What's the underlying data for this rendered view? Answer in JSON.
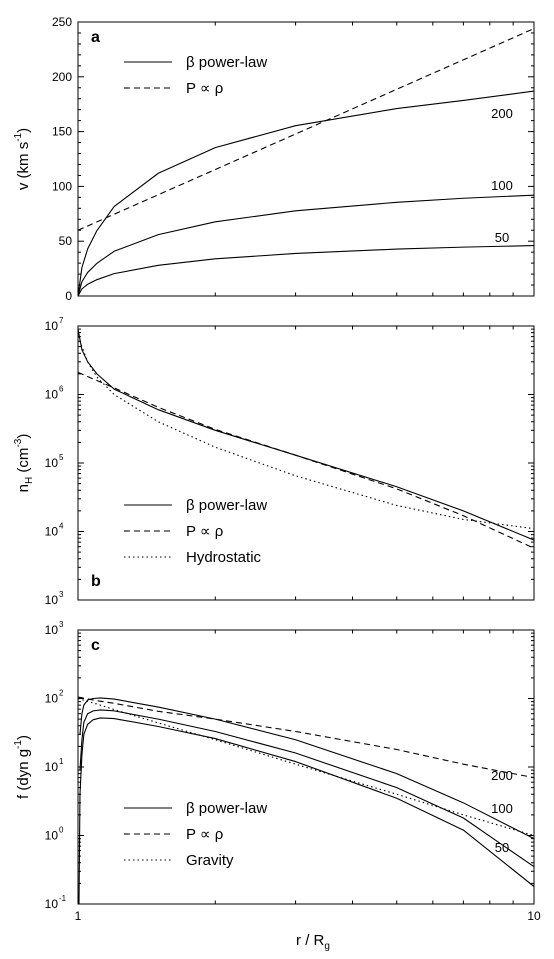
{
  "figure": {
    "xlabel_main": "r / R",
    "xlabel_sub": "g"
  },
  "chart_data": [
    {
      "type": "line",
      "panel": "a",
      "xscale": "log",
      "xlim": [
        1,
        10
      ],
      "ylim": [
        0,
        250
      ],
      "yticks": [
        "0",
        "50",
        "100",
        "150",
        "200",
        "250"
      ],
      "ylabel": {
        "pre": "v (km s",
        "sup": "-1",
        "post": ")"
      },
      "legend": {
        "placement": "top-left",
        "entries": [
          {
            "label": "β power-law",
            "style": "solid"
          },
          {
            "label": "P ∝ ρ",
            "style": "dashed"
          }
        ]
      },
      "series": [
        {
          "label": "50",
          "style": "solid",
          "x": [
            1,
            1.02,
            1.05,
            1.1,
            1.2,
            1.5,
            2,
            3,
            5,
            7,
            10
          ],
          "y": [
            0,
            6.5,
            10.7,
            14.9,
            20.4,
            28,
            33.9,
            38.8,
            42.8,
            44.6,
            46
          ]
        },
        {
          "label": "100",
          "style": "solid",
          "x": [
            1,
            1.02,
            1.05,
            1.1,
            1.2,
            1.5,
            2,
            3,
            5,
            7,
            10
          ],
          "y": [
            0,
            13,
            21.5,
            29.8,
            40.8,
            56,
            67.7,
            77.7,
            85.5,
            89.2,
            92
          ]
        },
        {
          "label": "200",
          "style": "solid",
          "x": [
            1,
            1.02,
            1.05,
            1.1,
            1.2,
            1.5,
            2,
            3,
            5,
            7,
            10
          ],
          "y": [
            0,
            26,
            43,
            59.6,
            81.6,
            112,
            135.4,
            155.4,
            171,
            178.4,
            187
          ]
        },
        {
          "label": "",
          "style": "dashed",
          "x": [
            1,
            10
          ],
          "y": [
            60,
            244
          ]
        }
      ],
      "annotations": [
        "a",
        "200",
        "100",
        "50"
      ]
    },
    {
      "type": "line",
      "panel": "b",
      "xscale": "log",
      "yscale": "log",
      "xlim": [
        1,
        10
      ],
      "ylim_exp": [
        3,
        7
      ],
      "yticks": [
        {
          "base": "10",
          "exp": "3"
        },
        {
          "base": "10",
          "exp": "4"
        },
        {
          "base": "10",
          "exp": "5"
        },
        {
          "base": "10",
          "exp": "6"
        },
        {
          "base": "10",
          "exp": "7"
        }
      ],
      "ylabel": {
        "pre": "n",
        "sub": "H",
        "mid": " (cm",
        "sup": "-3",
        "post": ")"
      },
      "legend": {
        "placement": "bottom-left",
        "entries": [
          {
            "label": "β power-law",
            "style": "solid"
          },
          {
            "label": "P ∝ ρ",
            "style": "dashed"
          },
          {
            "label": "Hydrostatic",
            "style": "dotted"
          }
        ]
      },
      "series": [
        {
          "name": "β power-law",
          "style": "solid",
          "x": [
            1,
            1.02,
            1.05,
            1.1,
            1.2,
            1.5,
            2,
            3,
            5,
            7,
            10
          ],
          "y": [
            9000000,
            4500000,
            3000000,
            2000000,
            1200000,
            600000,
            300000,
            130000,
            45000,
            20000,
            7500
          ]
        },
        {
          "name": "P ∝ ρ",
          "style": "dashed",
          "x": [
            1,
            1.1,
            1.2,
            1.5,
            2,
            3,
            5,
            7,
            10
          ],
          "y": [
            2100000,
            1600000,
            1250000,
            650000,
            310000,
            130000,
            42000,
            17000,
            5700
          ]
        },
        {
          "name": "Hydrostatic",
          "style": "dotted",
          "x": [
            1,
            1.02,
            1.05,
            1.1,
            1.2,
            1.5,
            2,
            3,
            5,
            7,
            10
          ],
          "y": [
            7000000,
            5000000,
            3000000,
            1800000,
            1000000,
            400000,
            170000,
            65000,
            24000,
            15000,
            11000
          ]
        }
      ],
      "annotations": [
        "b"
      ]
    },
    {
      "type": "line",
      "panel": "c",
      "xscale": "log",
      "yscale": "log",
      "xlim": [
        1,
        10
      ],
      "ylim_exp": [
        -1,
        3
      ],
      "xticks": [
        "1",
        "10"
      ],
      "yticks": [
        {
          "base": "10",
          "exp": "-1"
        },
        {
          "base": "10",
          "exp": "0"
        },
        {
          "base": "10",
          "exp": "1"
        },
        {
          "base": "10",
          "exp": "2"
        },
        {
          "base": "10",
          "exp": "3"
        }
      ],
      "ylabel": {
        "pre": "f (dyn g",
        "sup": "-1",
        "post": ")"
      },
      "legend": {
        "placement": "bottom-left",
        "entries": [
          {
            "label": "β power-law",
            "style": "solid"
          },
          {
            "label": "P ∝ ρ",
            "style": "dashed"
          },
          {
            "label": "Gravity",
            "style": "dotted"
          }
        ]
      },
      "series": [
        {
          "label": "200",
          "style": "solid",
          "x": [
            1.01,
            1.02,
            1.03,
            1.05,
            1.08,
            1.12,
            1.2,
            1.5,
            2,
            3,
            5,
            7,
            10
          ],
          "y": [
            30,
            60,
            80,
            95,
            100,
            102,
            98,
            75,
            50,
            25,
            8,
            3,
            0.9
          ]
        },
        {
          "label": "100",
          "style": "solid",
          "x": [
            1.01,
            1.02,
            1.03,
            1.05,
            1.08,
            1.12,
            1.2,
            1.5,
            2,
            3,
            5,
            7,
            10
          ],
          "y": [
            9,
            25,
            45,
            60,
            66,
            68,
            66,
            50,
            33,
            16,
            5,
            1.8,
            0.35
          ]
        },
        {
          "label": "50",
          "style": "solid",
          "x": [
            1.005,
            1.01,
            1.02,
            1.03,
            1.05,
            1.08,
            1.12,
            1.2,
            1.5,
            2,
            3,
            5,
            7,
            10
          ],
          "y": [
            0.1,
            4,
            15,
            30,
            42,
            49,
            52,
            51,
            39,
            26,
            12,
            3.5,
            1.2,
            0.18
          ]
        },
        {
          "label": "",
          "style": "dashed",
          "x": [
            1,
            1.1,
            1.2,
            1.5,
            2,
            3,
            5,
            7,
            10
          ],
          "y": [
            105,
            93,
            85,
            65,
            50,
            33,
            18,
            11,
            7
          ]
        },
        {
          "label": "",
          "style": "dotted",
          "x": [
            1,
            1.1,
            1.2,
            1.5,
            2,
            3,
            5,
            7,
            10
          ],
          "y": [
            100,
            83,
            69,
            44,
            25,
            11,
            4,
            2,
            1
          ]
        }
      ],
      "annotations": [
        "c",
        "200",
        "100",
        "50"
      ]
    }
  ]
}
